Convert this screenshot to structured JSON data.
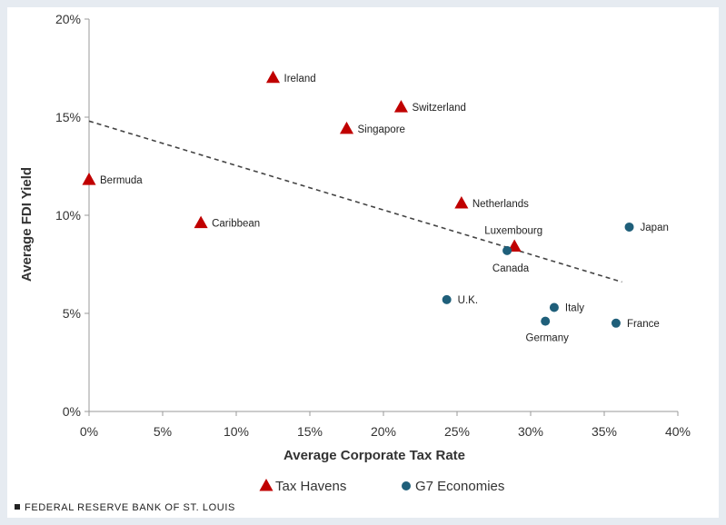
{
  "chart_data": {
    "type": "scatter",
    "title": "",
    "xlabel": "Average Corporate  Tax Rate",
    "ylabel": "Average FDI Yield",
    "xlim": [
      0,
      40
    ],
    "ylim": [
      0,
      20
    ],
    "x_ticks": [
      "0%",
      "5%",
      "10%",
      "15%",
      "20%",
      "25%",
      "30%",
      "35%",
      "40%"
    ],
    "y_ticks": [
      "0%",
      "5%",
      "10%",
      "15%",
      "20%"
    ],
    "grid": false,
    "legend_position": "bottom",
    "trendline": {
      "style": "dashed",
      "from": [
        0,
        14.8
      ],
      "to": [
        36.2,
        6.6
      ]
    },
    "series": [
      {
        "name": "Tax Havens",
        "marker": "triangle",
        "color": "#c00000",
        "points": [
          {
            "label": "Ireland",
            "x": 12.5,
            "y": 17.0
          },
          {
            "label": "Switzerland",
            "x": 21.2,
            "y": 15.5
          },
          {
            "label": "Singapore",
            "x": 17.5,
            "y": 14.4
          },
          {
            "label": "Bermuda",
            "x": 0.0,
            "y": 11.8
          },
          {
            "label": "Netherlands",
            "x": 25.3,
            "y": 10.6
          },
          {
            "label": "Caribbean",
            "x": 7.6,
            "y": 9.6
          },
          {
            "label": "Luxembourg",
            "x": 28.9,
            "y": 8.4
          }
        ]
      },
      {
        "name": "G7 Economies",
        "marker": "circle",
        "color": "#1f5f7a",
        "points": [
          {
            "label": "Japan",
            "x": 36.7,
            "y": 9.4
          },
          {
            "label": "Canada",
            "x": 28.4,
            "y": 8.2
          },
          {
            "label": "U.K.",
            "x": 24.3,
            "y": 5.7
          },
          {
            "label": "Italy",
            "x": 31.6,
            "y": 5.3
          },
          {
            "label": "Germany",
            "x": 31.0,
            "y": 4.6
          },
          {
            "label": "France",
            "x": 35.8,
            "y": 4.5
          }
        ]
      }
    ]
  },
  "source": "FEDERAL RESERVE BANK OF ST. LOUIS"
}
